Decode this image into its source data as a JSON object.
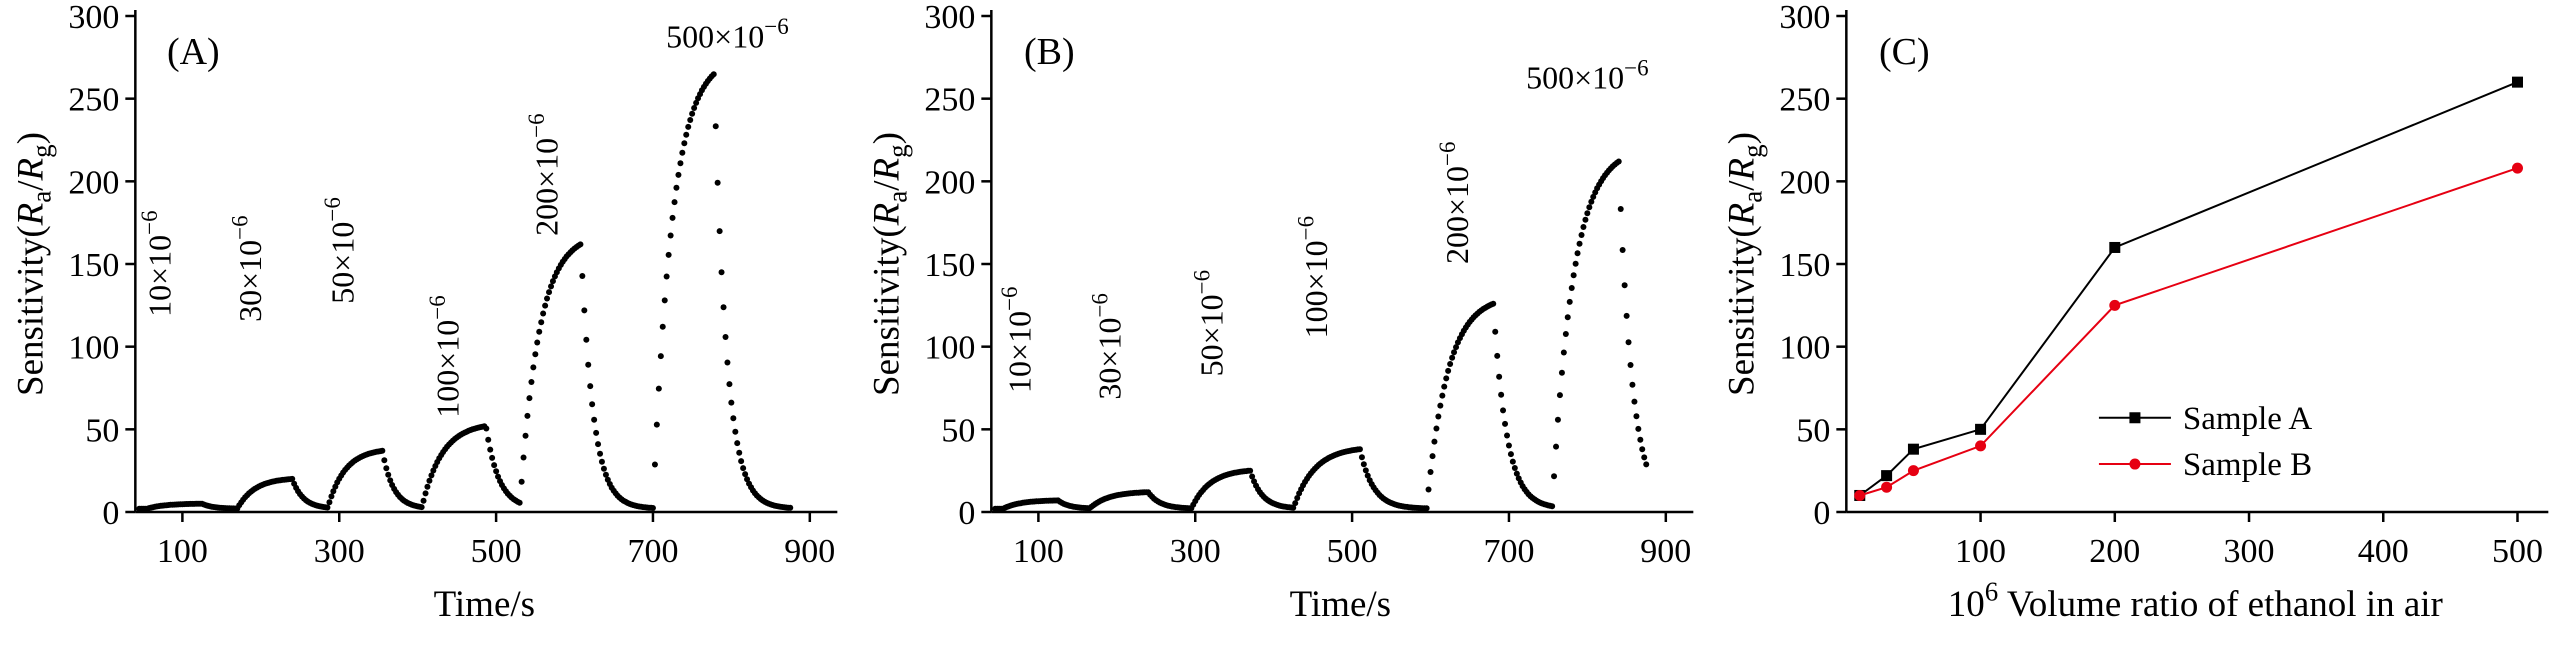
{
  "figure": {
    "background": "#ffffff",
    "black": "#000000",
    "red": "#e60012"
  },
  "chart_data": [
    {
      "id": "A",
      "type": "scatter",
      "panel_label": "(A)",
      "xlabel_segments": [
        {
          "t": "Time/s"
        }
      ],
      "ylabel_segments": [
        {
          "t": "Sensitivity("
        },
        {
          "t": "R",
          "i": true
        },
        {
          "t": "a",
          "sub": true
        },
        {
          "t": "/"
        },
        {
          "t": "R",
          "i": true
        },
        {
          "t": "g",
          "sub": true
        },
        {
          "t": ")"
        }
      ],
      "xlim": [
        40,
        930
      ],
      "ylim": [
        0,
        300
      ],
      "xticks": [
        100,
        300,
        500,
        700,
        900
      ],
      "yticks": [
        0,
        50,
        100,
        150,
        200,
        250,
        300
      ],
      "grid": false,
      "baseline": 2,
      "marker_color": "#000000",
      "pulses": [
        {
          "concentration": "10×10−6",
          "on": 55,
          "off": 125,
          "peak": 5
        },
        {
          "concentration": "30×10−6",
          "on": 170,
          "off": 240,
          "peak": 20
        },
        {
          "concentration": "50×10−6",
          "on": 285,
          "off": 355,
          "peak": 37
        },
        {
          "concentration": "100×10−6",
          "on": 405,
          "off": 487,
          "peak": 52
        },
        {
          "concentration": "200×10−6",
          "on": 530,
          "off": 608,
          "peak": 162
        },
        {
          "concentration": "500×10−6",
          "on": 700,
          "off": 778,
          "peak": 265
        }
      ],
      "annotations": [
        {
          "segments": [
            {
              "t": "10×10"
            },
            {
              "t": "−6",
              "sup": true
            }
          ],
          "x": 85,
          "y": 118,
          "orient": "v"
        },
        {
          "segments": [
            {
              "t": "30×10"
            },
            {
              "t": "−6",
              "sup": true
            }
          ],
          "x": 200,
          "y": 115,
          "orient": "v"
        },
        {
          "segments": [
            {
              "t": "50×10"
            },
            {
              "t": "−6",
              "sup": true
            }
          ],
          "x": 318,
          "y": 126,
          "orient": "v"
        },
        {
          "segments": [
            {
              "t": "100×10"
            },
            {
              "t": "−6",
              "sup": true
            }
          ],
          "x": 452,
          "y": 57,
          "orient": "v"
        },
        {
          "segments": [
            {
              "t": "200×10"
            },
            {
              "t": "−6",
              "sup": true
            }
          ],
          "x": 578,
          "y": 167,
          "orient": "v"
        },
        {
          "segments": [
            {
              "t": "500×10"
            },
            {
              "t": "−6",
              "sup": true
            }
          ],
          "x": 795,
          "y": 281,
          "orient": "h"
        }
      ]
    },
    {
      "id": "B",
      "type": "scatter",
      "panel_label": "(B)",
      "xlabel_segments": [
        {
          "t": "Time/s"
        }
      ],
      "ylabel_segments": [
        {
          "t": "Sensitivity("
        },
        {
          "t": "R",
          "i": true
        },
        {
          "t": "a",
          "sub": true
        },
        {
          "t": "/"
        },
        {
          "t": "R",
          "i": true
        },
        {
          "t": "g",
          "sub": true
        },
        {
          "t": ")"
        }
      ],
      "xlim": [
        40,
        930
      ],
      "ylim": [
        0,
        300
      ],
      "xticks": [
        100,
        300,
        500,
        700,
        900
      ],
      "yticks": [
        0,
        50,
        100,
        150,
        200,
        250,
        300
      ],
      "grid": false,
      "baseline": 2,
      "marker_color": "#000000",
      "pulses": [
        {
          "concentration": "10×10−6",
          "on": 55,
          "off": 125,
          "peak": 7
        },
        {
          "concentration": "30×10−6",
          "on": 165,
          "off": 240,
          "peak": 12
        },
        {
          "concentration": "50×10−6",
          "on": 295,
          "off": 370,
          "peak": 25
        },
        {
          "concentration": "100×10−6",
          "on": 425,
          "off": 510,
          "peak": 38
        },
        {
          "concentration": "200×10−6",
          "on": 595,
          "off": 680,
          "peak": 126
        },
        {
          "concentration": "500×10−6",
          "on": 755,
          "off": 840,
          "peak": 212
        }
      ],
      "annotations": [
        {
          "segments": [
            {
              "t": "10×10"
            },
            {
              "t": "−6",
              "sup": true
            }
          ],
          "x": 90,
          "y": 72,
          "orient": "v"
        },
        {
          "segments": [
            {
              "t": "30×10"
            },
            {
              "t": "−6",
              "sup": true
            }
          ],
          "x": 205,
          "y": 68,
          "orient": "v"
        },
        {
          "segments": [
            {
              "t": "50×10"
            },
            {
              "t": "−6",
              "sup": true
            }
          ],
          "x": 335,
          "y": 82,
          "orient": "v"
        },
        {
          "segments": [
            {
              "t": "100×10"
            },
            {
              "t": "−6",
              "sup": true
            }
          ],
          "x": 468,
          "y": 105,
          "orient": "v"
        },
        {
          "segments": [
            {
              "t": "200×10"
            },
            {
              "t": "−6",
              "sup": true
            }
          ],
          "x": 648,
          "y": 150,
          "orient": "v"
        },
        {
          "segments": [
            {
              "t": "500×10"
            },
            {
              "t": "−6",
              "sup": true
            }
          ],
          "x": 800,
          "y": 256,
          "orient": "h"
        }
      ]
    },
    {
      "id": "C",
      "type": "line",
      "panel_label": "(C)",
      "xlabel_segments": [
        {
          "t": "10"
        },
        {
          "t": "6",
          "sup": true
        },
        {
          "t": " Volume ratio of ethanol in air"
        }
      ],
      "ylabel_segments": [
        {
          "t": "Sensitivity("
        },
        {
          "t": "R",
          "i": true
        },
        {
          "t": "a",
          "sub": true
        },
        {
          "t": "/"
        },
        {
          "t": "R",
          "i": true
        },
        {
          "t": "g",
          "sub": true
        },
        {
          "t": ")"
        }
      ],
      "xlim": [
        0,
        520
      ],
      "ylim": [
        0,
        300
      ],
      "xticks": [
        100,
        200,
        300,
        400,
        500
      ],
      "yticks": [
        0,
        50,
        100,
        150,
        200,
        250,
        300
      ],
      "grid": false,
      "series": [
        {
          "name": "Sample A",
          "color": "#000000",
          "marker": "square",
          "x": [
            10,
            30,
            50,
            100,
            200,
            500
          ],
          "y": [
            10,
            22,
            38,
            50,
            160,
            260
          ]
        },
        {
          "name": "Sample B",
          "color": "#e60012",
          "marker": "circle",
          "x": [
            10,
            30,
            50,
            100,
            200,
            500
          ],
          "y": [
            10,
            15,
            25,
            40,
            125,
            208
          ]
        }
      ],
      "legend": {
        "position": "center-right",
        "x": 215,
        "rows_y": [
          57,
          29
        ]
      }
    }
  ]
}
